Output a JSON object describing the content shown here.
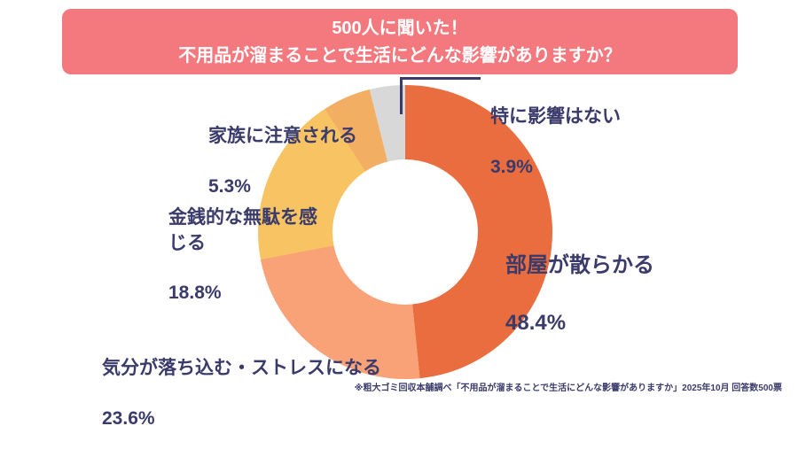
{
  "banner": {
    "line1": "500人に聞いた！",
    "line2": "不用品が溜まることで生活にどんな影響がありますか？",
    "bg_color": "#F4797E",
    "text_color": "#FFFFFF"
  },
  "chart_data": {
    "type": "pie",
    "donut": true,
    "start_angle_deg": 0,
    "direction": "clockwise",
    "title": "500人に聞いた！不用品が溜まることで生活にどんな影響がありますか？",
    "unit": "%",
    "total_responses": 500,
    "segments": [
      {
        "label": "部屋が散らかる",
        "value": 48.4,
        "pct_text": "48.4%",
        "color": "#EA6D3F"
      },
      {
        "label": "気分が落ち込む・ストレスになる",
        "value": 23.6,
        "pct_text": "23.6%",
        "color": "#F9A177"
      },
      {
        "label": "金銭的な無駄を感じる",
        "value": 18.8,
        "pct_text": "18.8%",
        "color": "#F8C463"
      },
      {
        "label": "家族に注意される",
        "value": 5.3,
        "pct_text": "5.3%",
        "color": "#F2AF63"
      },
      {
        "label": "特に影響はない",
        "value": 3.9,
        "pct_text": "3.9%",
        "color": "#D8D8D8"
      }
    ],
    "label_text_color": "#3A3A6B",
    "legend_position": "around"
  },
  "footer": {
    "source": "※粗大ゴミ回収本舗調べ「不用品が溜まることで生活にどんな影響がありますか」2025年10月 回答数500票"
  }
}
